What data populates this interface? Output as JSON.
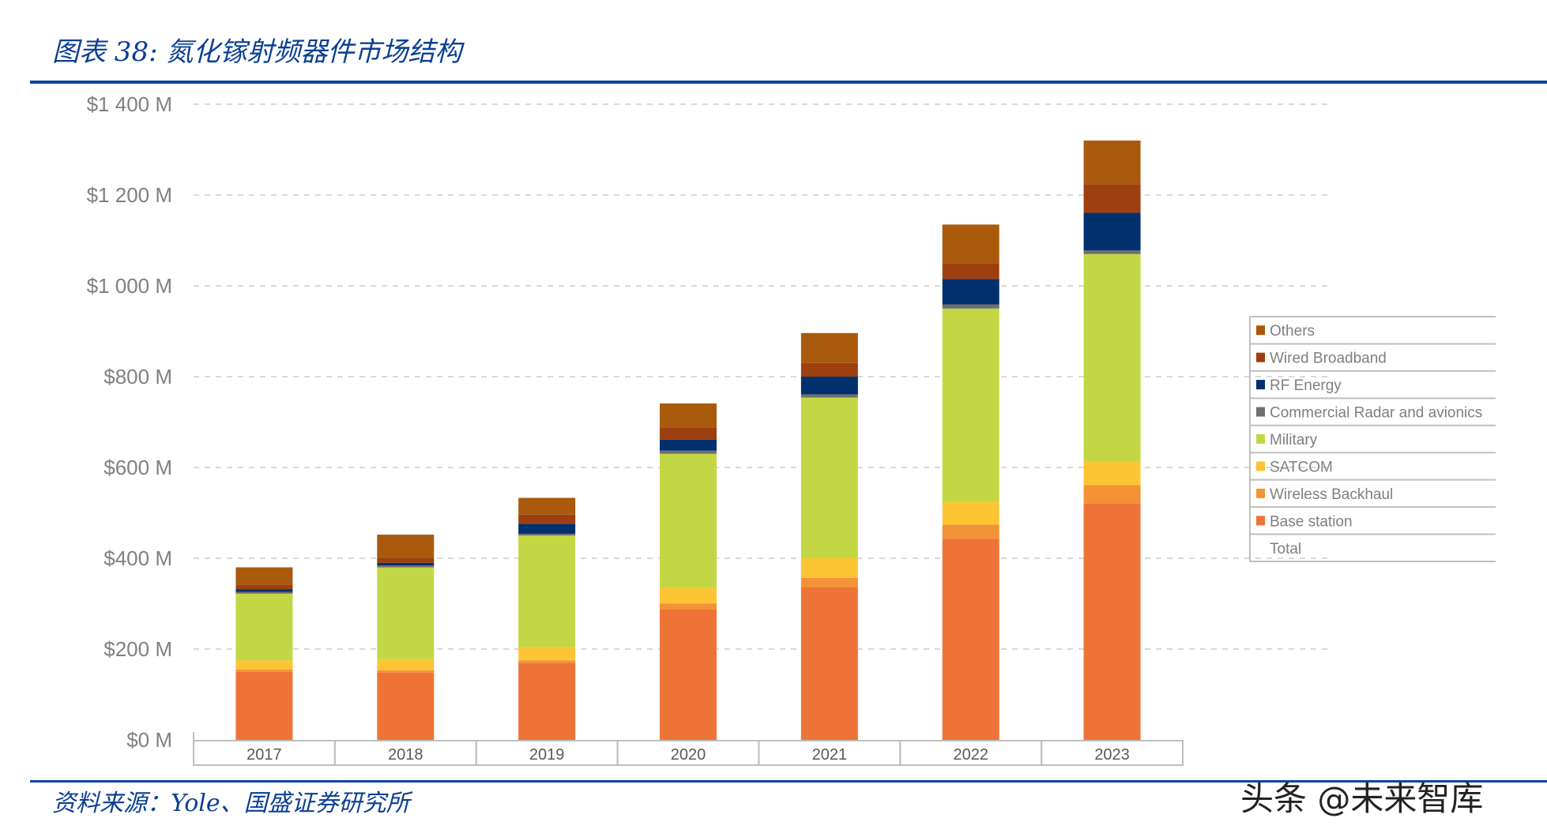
{
  "title": "图表 38:  氮化镓射频器件市场结构",
  "source": "资料来源：Yole、国盛证券研究所",
  "watermark": "头条 @未来智库",
  "chart_data": {
    "type": "bar",
    "stacked": true,
    "title": "",
    "xlabel": "",
    "ylabel": "",
    "ylim": [
      0,
      1400
    ],
    "yticks": [
      0,
      200,
      400,
      600,
      800,
      1000,
      1200,
      1400
    ],
    "ytick_labels": [
      "$0 M",
      "$200 M",
      "$400 M",
      "$600 M",
      "$800 M",
      "$1 000 M",
      "$1 200 M",
      "$1 400 M"
    ],
    "grid": true,
    "legend_position": "right",
    "categories": [
      "2017",
      "2018",
      "2019",
      "2020",
      "2021",
      "2022",
      "2023"
    ],
    "series": [
      {
        "name": "Base station",
        "color": "#ED7436",
        "values": [
          150,
          148,
          170,
          287,
          337,
          443,
          520
        ]
      },
      {
        "name": "Wireless Backhaul",
        "color": "#F39237",
        "values": [
          5,
          5,
          5,
          13,
          20,
          31,
          41
        ]
      },
      {
        "name": "SATCOM",
        "color": "#FDC534",
        "values": [
          20,
          25,
          29,
          35,
          43,
          50,
          52
        ]
      },
      {
        "name": "Military",
        "color": "#C3D744",
        "values": [
          147,
          202,
          246,
          295,
          354,
          426,
          457
        ]
      },
      {
        "name": "Commercial Radar and avionics",
        "color": "#6F6F6F",
        "values": [
          4,
          4,
          4,
          7,
          7,
          9,
          8
        ]
      },
      {
        "name": "RF Energy",
        "color": "#00306E",
        "values": [
          6,
          6,
          22,
          24,
          39,
          56,
          83
        ]
      },
      {
        "name": "Wired Broadband",
        "color": "#9E3F10",
        "values": [
          10,
          10,
          20,
          26,
          30,
          35,
          63
        ]
      },
      {
        "name": "Others",
        "color": "#A95A0D",
        "values": [
          38,
          52,
          37,
          54,
          66,
          85,
          96
        ]
      }
    ],
    "legend_extra": "Total"
  }
}
